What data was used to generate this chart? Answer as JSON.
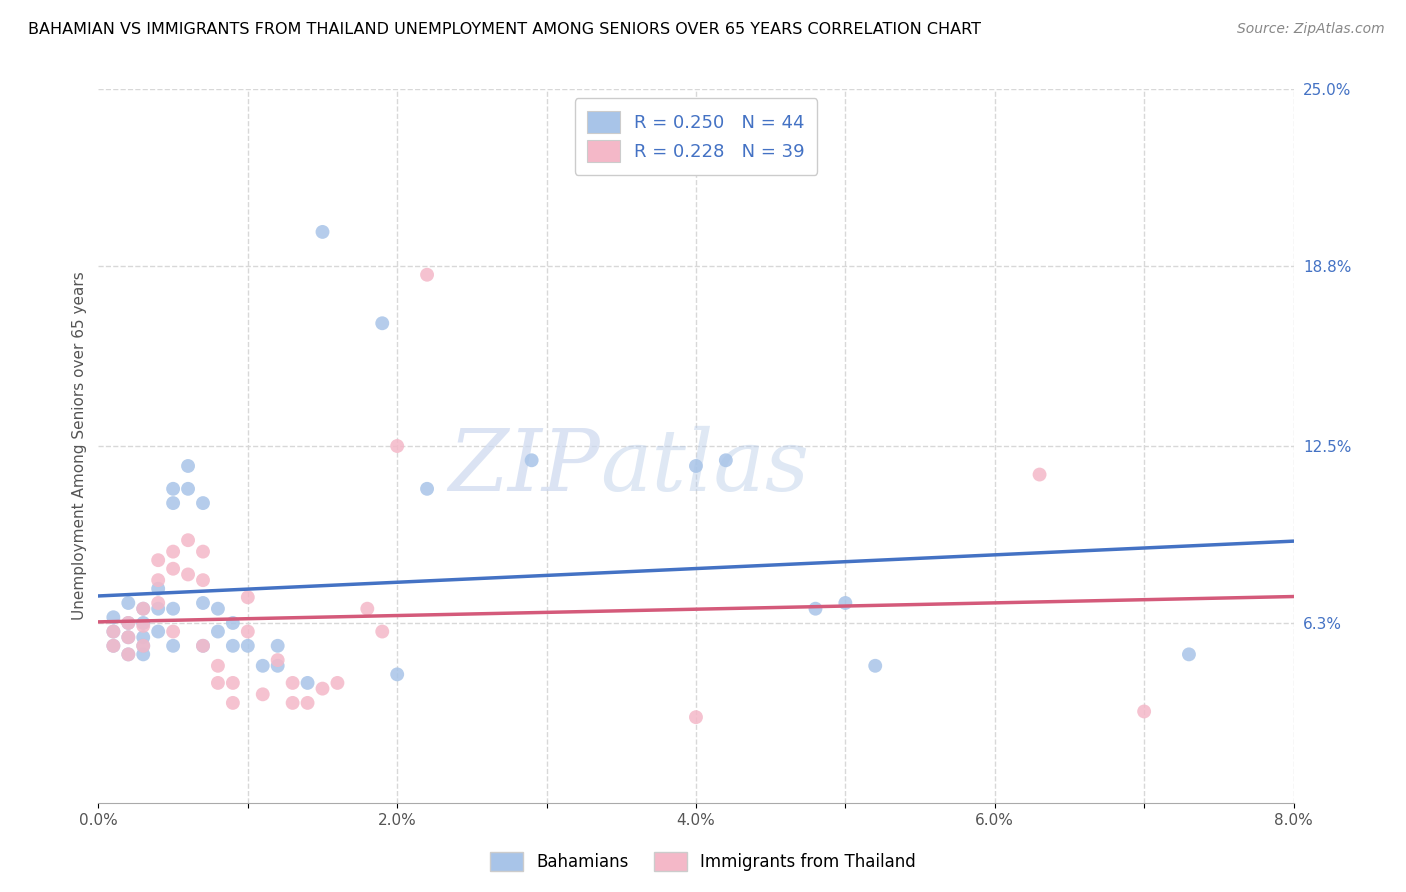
{
  "title": "BAHAMIAN VS IMMIGRANTS FROM THAILAND UNEMPLOYMENT AMONG SENIORS OVER 65 YEARS CORRELATION CHART",
  "source": "Source: ZipAtlas.com",
  "ylabel": "Unemployment Among Seniors over 65 years",
  "xlim": [
    0.0,
    0.08
  ],
  "ylim": [
    0.0,
    0.25
  ],
  "xticks": [
    0.0,
    0.01,
    0.02,
    0.03,
    0.04,
    0.05,
    0.06,
    0.07,
    0.08
  ],
  "xticklabels": [
    "0.0%",
    "",
    "2.0%",
    "",
    "4.0%",
    "",
    "6.0%",
    "",
    "8.0%"
  ],
  "ytick_labels_right": [
    "25.0%",
    "18.8%",
    "12.5%",
    "6.3%"
  ],
  "ytick_values_right": [
    0.25,
    0.188,
    0.125,
    0.063
  ],
  "blue_color": "#a8c4e8",
  "pink_color": "#f4b8c8",
  "blue_line_color": "#4472c4",
  "pink_line_color": "#d45a7a",
  "right_label_color": "#4472c4",
  "blue_scatter_x": [
    0.001,
    0.001,
    0.001,
    0.002,
    0.002,
    0.002,
    0.002,
    0.003,
    0.003,
    0.003,
    0.003,
    0.003,
    0.004,
    0.004,
    0.004,
    0.005,
    0.005,
    0.005,
    0.005,
    0.006,
    0.006,
    0.007,
    0.007,
    0.007,
    0.008,
    0.008,
    0.009,
    0.009,
    0.01,
    0.011,
    0.012,
    0.012,
    0.014,
    0.015,
    0.019,
    0.02,
    0.022,
    0.029,
    0.04,
    0.042,
    0.048,
    0.05,
    0.052,
    0.073
  ],
  "blue_scatter_y": [
    0.065,
    0.06,
    0.055,
    0.07,
    0.063,
    0.058,
    0.052,
    0.068,
    0.063,
    0.058,
    0.055,
    0.052,
    0.075,
    0.068,
    0.06,
    0.11,
    0.105,
    0.068,
    0.055,
    0.118,
    0.11,
    0.105,
    0.07,
    0.055,
    0.068,
    0.06,
    0.063,
    0.055,
    0.055,
    0.048,
    0.055,
    0.048,
    0.042,
    0.2,
    0.168,
    0.045,
    0.11,
    0.12,
    0.118,
    0.12,
    0.068,
    0.07,
    0.048,
    0.052
  ],
  "pink_scatter_x": [
    0.001,
    0.001,
    0.002,
    0.002,
    0.002,
    0.003,
    0.003,
    0.003,
    0.004,
    0.004,
    0.004,
    0.005,
    0.005,
    0.005,
    0.006,
    0.006,
    0.007,
    0.007,
    0.007,
    0.008,
    0.008,
    0.009,
    0.009,
    0.01,
    0.01,
    0.011,
    0.012,
    0.013,
    0.013,
    0.014,
    0.015,
    0.016,
    0.018,
    0.019,
    0.02,
    0.022,
    0.04,
    0.063,
    0.07
  ],
  "pink_scatter_y": [
    0.06,
    0.055,
    0.063,
    0.058,
    0.052,
    0.068,
    0.062,
    0.055,
    0.085,
    0.078,
    0.07,
    0.088,
    0.082,
    0.06,
    0.092,
    0.08,
    0.088,
    0.078,
    0.055,
    0.048,
    0.042,
    0.042,
    0.035,
    0.072,
    0.06,
    0.038,
    0.05,
    0.042,
    0.035,
    0.035,
    0.04,
    0.042,
    0.068,
    0.06,
    0.125,
    0.185,
    0.03,
    0.115,
    0.032
  ],
  "legend_bottom_blue": "Bahamians",
  "legend_bottom_pink": "Immigrants from Thailand",
  "watermark_zip": "ZIP",
  "watermark_atlas": "atlas",
  "background_color": "#ffffff",
  "grid_color": "#d8d8d8"
}
